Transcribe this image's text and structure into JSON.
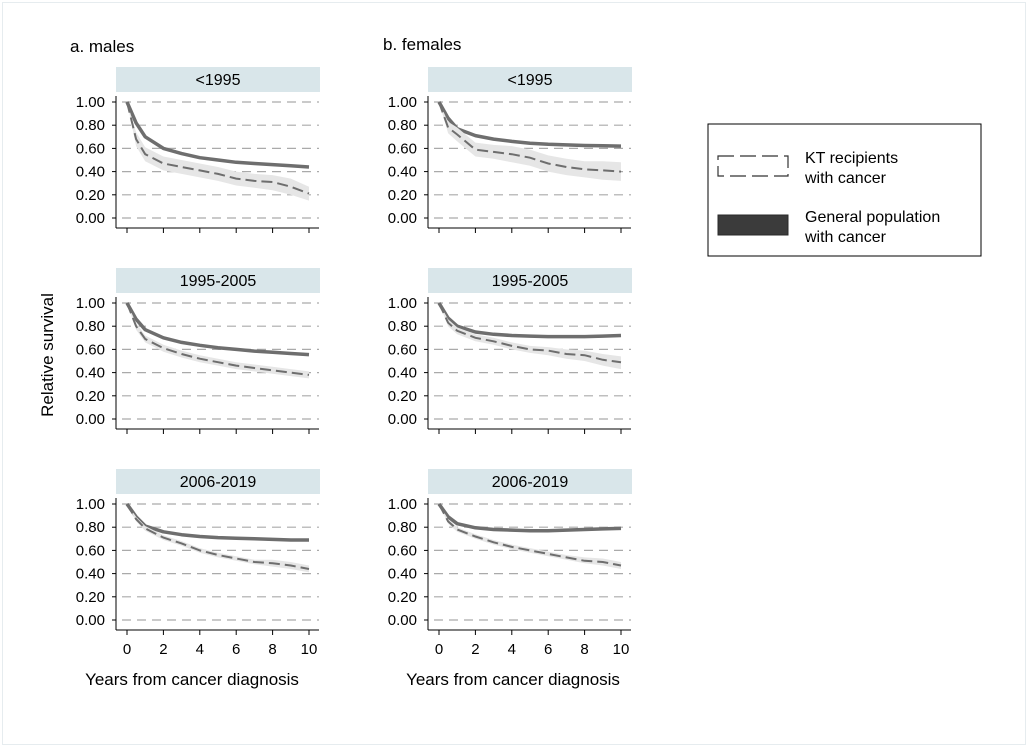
{
  "ylabel": "Relative survival",
  "xlabel": "Years from cancer diagnosis",
  "legend": {
    "items": [
      {
        "label_line1": "KT recipients",
        "label_line2": "with cancer",
        "style": "dashed-band"
      },
      {
        "label_line1": "General population",
        "label_line2": "with cancer",
        "style": "solid-thick"
      }
    ]
  },
  "columns": [
    "a. males",
    "b. females"
  ],
  "colors": {
    "strip": "#d9e6ea",
    "line": "#6e6e6e",
    "band": "#e6e6e6",
    "grid": "#aaaaaa",
    "legendSolid": "#3b3b3b"
  },
  "chart_data": [
    {
      "type": "line",
      "panel": "<1995",
      "column": "a. males",
      "xlim": [
        0,
        10
      ],
      "ylim": [
        0,
        1
      ],
      "x_ticks": [
        0,
        2,
        4,
        6,
        8,
        10
      ],
      "y_ticks": [
        "0.00",
        "0.20",
        "0.40",
        "0.60",
        "0.80",
        "1.00"
      ],
      "grid": true,
      "series": [
        {
          "name": "General population with cancer",
          "x": [
            0,
            0.5,
            1,
            2,
            3,
            4,
            5,
            6,
            7,
            8,
            9,
            10
          ],
          "y": [
            1.0,
            0.82,
            0.7,
            0.6,
            0.555,
            0.52,
            0.5,
            0.48,
            0.47,
            0.46,
            0.45,
            0.44
          ]
        },
        {
          "name": "KT recipients with cancer",
          "x": [
            0,
            0.5,
            1,
            2,
            3,
            4,
            5,
            6,
            7,
            8,
            9,
            10
          ],
          "y": [
            1.0,
            0.68,
            0.55,
            0.47,
            0.44,
            0.41,
            0.38,
            0.34,
            0.32,
            0.31,
            0.27,
            0.21
          ],
          "lower": [
            1.0,
            0.62,
            0.49,
            0.41,
            0.38,
            0.35,
            0.32,
            0.28,
            0.26,
            0.24,
            0.2,
            0.15
          ],
          "upper": [
            1.0,
            0.74,
            0.61,
            0.53,
            0.5,
            0.47,
            0.44,
            0.4,
            0.38,
            0.37,
            0.34,
            0.27
          ]
        }
      ]
    },
    {
      "type": "line",
      "panel": "<1995",
      "column": "b. females",
      "xlim": [
        0,
        10
      ],
      "ylim": [
        0,
        1
      ],
      "x_ticks": [
        0,
        2,
        4,
        6,
        8,
        10
      ],
      "y_ticks": [
        "0.00",
        "0.20",
        "0.40",
        "0.60",
        "0.80",
        "1.00"
      ],
      "grid": true,
      "series": [
        {
          "name": "General population with cancer",
          "x": [
            0,
            0.5,
            1,
            2,
            3,
            4,
            5,
            6,
            7,
            8,
            9,
            10
          ],
          "y": [
            1.0,
            0.86,
            0.77,
            0.71,
            0.68,
            0.66,
            0.645,
            0.635,
            0.63,
            0.625,
            0.622,
            0.62
          ]
        },
        {
          "name": "KT recipients with cancer",
          "x": [
            0,
            0.5,
            1,
            2,
            3,
            4,
            5,
            6,
            7,
            8,
            9,
            10
          ],
          "y": [
            1.0,
            0.78,
            0.72,
            0.59,
            0.57,
            0.55,
            0.52,
            0.47,
            0.44,
            0.42,
            0.41,
            0.4
          ],
          "lower": [
            1.0,
            0.73,
            0.66,
            0.53,
            0.51,
            0.48,
            0.45,
            0.4,
            0.37,
            0.35,
            0.33,
            0.32
          ],
          "upper": [
            1.0,
            0.83,
            0.78,
            0.65,
            0.63,
            0.62,
            0.59,
            0.54,
            0.51,
            0.49,
            0.49,
            0.48
          ]
        }
      ]
    },
    {
      "type": "line",
      "panel": "1995-2005",
      "column": "a. males",
      "xlim": [
        0,
        10
      ],
      "ylim": [
        0,
        1
      ],
      "x_ticks": [
        0,
        2,
        4,
        6,
        8,
        10
      ],
      "y_ticks": [
        "0.00",
        "0.20",
        "0.40",
        "0.60",
        "0.80",
        "1.00"
      ],
      "grid": true,
      "series": [
        {
          "name": "General population with cancer",
          "x": [
            0,
            0.5,
            1,
            2,
            3,
            4,
            5,
            6,
            7,
            8,
            9,
            10
          ],
          "y": [
            1.0,
            0.86,
            0.77,
            0.7,
            0.66,
            0.635,
            0.615,
            0.6,
            0.585,
            0.575,
            0.565,
            0.555
          ]
        },
        {
          "name": "KT recipients with cancer",
          "x": [
            0,
            0.5,
            1,
            2,
            3,
            4,
            5,
            6,
            7,
            8,
            9,
            10
          ],
          "y": [
            1.0,
            0.8,
            0.69,
            0.61,
            0.56,
            0.52,
            0.49,
            0.46,
            0.44,
            0.42,
            0.4,
            0.38
          ],
          "lower": [
            1.0,
            0.77,
            0.66,
            0.58,
            0.53,
            0.49,
            0.46,
            0.43,
            0.41,
            0.39,
            0.37,
            0.35
          ],
          "upper": [
            1.0,
            0.83,
            0.72,
            0.64,
            0.59,
            0.55,
            0.52,
            0.49,
            0.47,
            0.45,
            0.43,
            0.41
          ]
        }
      ]
    },
    {
      "type": "line",
      "panel": "1995-2005",
      "column": "b. females",
      "xlim": [
        0,
        10
      ],
      "ylim": [
        0,
        1
      ],
      "x_ticks": [
        0,
        2,
        4,
        6,
        8,
        10
      ],
      "y_ticks": [
        "0.00",
        "0.20",
        "0.40",
        "0.60",
        "0.80",
        "1.00"
      ],
      "grid": true,
      "series": [
        {
          "name": "General population with cancer",
          "x": [
            0,
            0.5,
            1,
            2,
            3,
            4,
            5,
            6,
            7,
            8,
            9,
            10
          ],
          "y": [
            1.0,
            0.87,
            0.8,
            0.75,
            0.73,
            0.72,
            0.715,
            0.71,
            0.71,
            0.71,
            0.715,
            0.72
          ]
        },
        {
          "name": "KT recipients with cancer",
          "x": [
            0,
            0.5,
            1,
            2,
            3,
            4,
            5,
            6,
            7,
            8,
            9,
            10
          ],
          "y": [
            1.0,
            0.83,
            0.76,
            0.7,
            0.67,
            0.63,
            0.6,
            0.59,
            0.56,
            0.55,
            0.51,
            0.49
          ],
          "lower": [
            1.0,
            0.8,
            0.73,
            0.67,
            0.64,
            0.6,
            0.57,
            0.55,
            0.52,
            0.5,
            0.46,
            0.43
          ],
          "upper": [
            1.0,
            0.86,
            0.79,
            0.73,
            0.7,
            0.66,
            0.63,
            0.62,
            0.6,
            0.59,
            0.56,
            0.54
          ]
        }
      ]
    },
    {
      "type": "line",
      "panel": "2006-2019",
      "column": "a. males",
      "xlim": [
        0,
        10
      ],
      "ylim": [
        0,
        1
      ],
      "x_ticks": [
        0,
        2,
        4,
        6,
        8,
        10
      ],
      "y_ticks": [
        "0.00",
        "0.20",
        "0.40",
        "0.60",
        "0.80",
        "1.00"
      ],
      "grid": true,
      "series": [
        {
          "name": "General population with cancer",
          "x": [
            0,
            0.5,
            1,
            2,
            3,
            4,
            5,
            6,
            7,
            8,
            9,
            10
          ],
          "y": [
            1.0,
            0.89,
            0.81,
            0.76,
            0.735,
            0.72,
            0.71,
            0.705,
            0.7,
            0.695,
            0.69,
            0.69
          ]
        },
        {
          "name": "KT recipients with cancer",
          "x": [
            0,
            0.5,
            1,
            2,
            3,
            4,
            5,
            6,
            7,
            8,
            9,
            10
          ],
          "y": [
            1.0,
            0.87,
            0.79,
            0.71,
            0.66,
            0.6,
            0.56,
            0.53,
            0.5,
            0.49,
            0.47,
            0.44
          ],
          "lower": [
            1.0,
            0.85,
            0.77,
            0.69,
            0.64,
            0.58,
            0.54,
            0.51,
            0.48,
            0.46,
            0.44,
            0.41
          ],
          "upper": [
            1.0,
            0.89,
            0.81,
            0.73,
            0.68,
            0.62,
            0.58,
            0.55,
            0.52,
            0.52,
            0.5,
            0.47
          ]
        }
      ]
    },
    {
      "type": "line",
      "panel": "2006-2019",
      "column": "b. females",
      "xlim": [
        0,
        10
      ],
      "ylim": [
        0,
        1
      ],
      "x_ticks": [
        0,
        2,
        4,
        6,
        8,
        10
      ],
      "y_ticks": [
        "0.00",
        "0.20",
        "0.40",
        "0.60",
        "0.80",
        "1.00"
      ],
      "grid": true,
      "series": [
        {
          "name": "General population with cancer",
          "x": [
            0,
            0.5,
            1,
            2,
            3,
            4,
            5,
            6,
            7,
            8,
            9,
            10
          ],
          "y": [
            1.0,
            0.89,
            0.83,
            0.795,
            0.78,
            0.775,
            0.77,
            0.77,
            0.775,
            0.78,
            0.785,
            0.79
          ]
        },
        {
          "name": "KT recipients with cancer",
          "x": [
            0,
            0.5,
            1,
            2,
            3,
            4,
            5,
            6,
            7,
            8,
            9,
            10
          ],
          "y": [
            1.0,
            0.85,
            0.78,
            0.72,
            0.67,
            0.63,
            0.6,
            0.57,
            0.54,
            0.51,
            0.5,
            0.47
          ],
          "lower": [
            1.0,
            0.83,
            0.76,
            0.7,
            0.65,
            0.61,
            0.58,
            0.55,
            0.52,
            0.49,
            0.47,
            0.44
          ],
          "upper": [
            1.0,
            0.87,
            0.8,
            0.74,
            0.69,
            0.65,
            0.62,
            0.59,
            0.56,
            0.54,
            0.53,
            0.5
          ]
        }
      ]
    }
  ]
}
